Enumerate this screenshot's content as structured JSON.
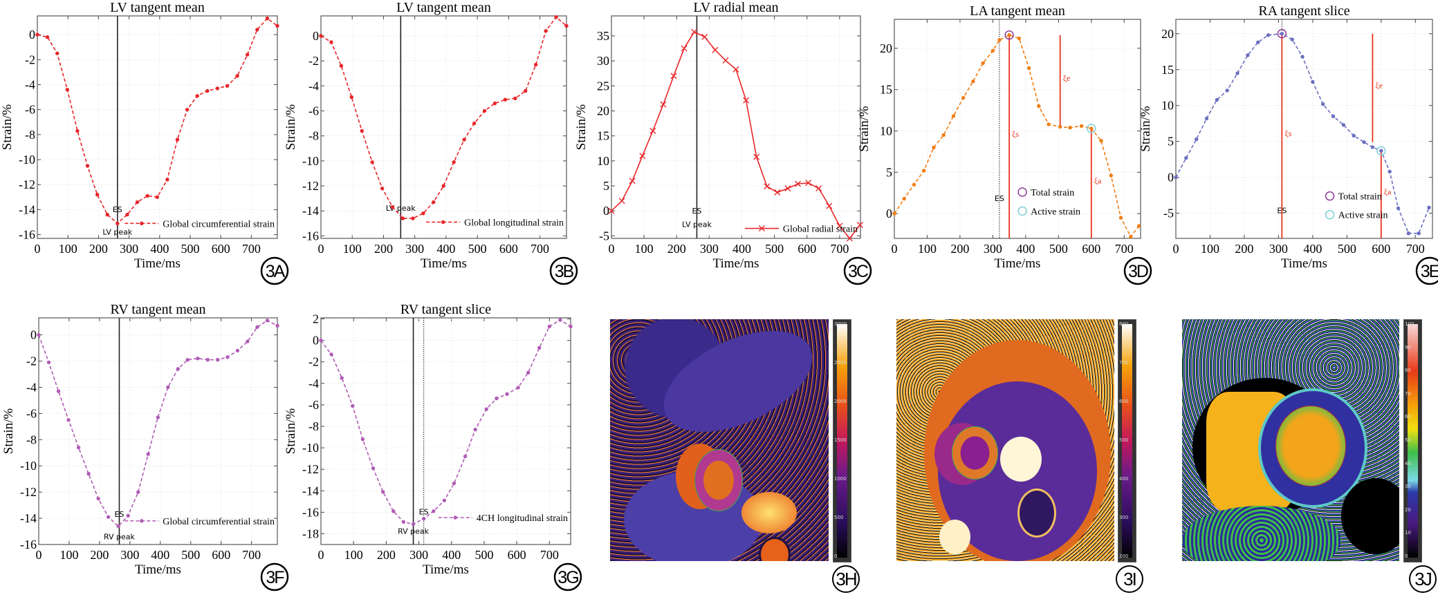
{
  "chart_data": [
    {
      "panel_label": "3A",
      "type": "line",
      "title": "LV tangent mean",
      "xlabel": "Time/ms",
      "ylabel": "Strain/%",
      "xlim": [
        0,
        785
      ],
      "ylim": [
        -16.3,
        1.5
      ],
      "xticks": [
        0,
        100,
        200,
        300,
        400,
        500,
        600,
        700
      ],
      "yticks": [
        -16,
        -14,
        -12,
        -10,
        -8,
        -6,
        -4,
        -2,
        0
      ],
      "grid": true,
      "color": "#e8262a",
      "marker": "dot",
      "line": "dashed",
      "legend": "bottom-right",
      "series": [
        {
          "name": "Global circumferential strain",
          "x": [
            0,
            33,
            65,
            98,
            131,
            164,
            196,
            229,
            262,
            294,
            327,
            360,
            392,
            425,
            458,
            490,
            523,
            556,
            589,
            621,
            654,
            687,
            719,
            752,
            785
          ],
          "y": [
            0,
            -0.2,
            -1.5,
            -4.4,
            -7.7,
            -10.5,
            -12.8,
            -14.4,
            -15.1,
            -14.4,
            -13.4,
            -12.9,
            -13.0,
            -11.6,
            -8.4,
            -6.0,
            -4.9,
            -4.5,
            -4.3,
            -4.1,
            -3.3,
            -1.6,
            0.4,
            1.3,
            0.7
          ]
        }
      ],
      "vlines": [
        {
          "x": 262,
          "style": "solid",
          "labels": [
            "ES",
            "LV peak"
          ]
        }
      ]
    },
    {
      "panel_label": "3B",
      "type": "line",
      "title": "LV tangent mean",
      "xlabel": "Time/ms",
      "ylabel": "Strain/%",
      "xlim": [
        0,
        785
      ],
      "ylim": [
        -16.2,
        1.6
      ],
      "xticks": [
        0,
        100,
        200,
        300,
        400,
        500,
        600,
        700
      ],
      "yticks": [
        -16,
        -14,
        -12,
        -10,
        -8,
        -6,
        -4,
        -2,
        0
      ],
      "grid": true,
      "color": "#e8262a",
      "marker": "dot",
      "line": "dashed",
      "legend": "bottom-right",
      "series": [
        {
          "name": "Global longitudinal strain",
          "x": [
            0,
            33,
            65,
            98,
            131,
            164,
            196,
            229,
            262,
            294,
            327,
            360,
            392,
            425,
            458,
            490,
            523,
            556,
            589,
            621,
            654,
            687,
            719,
            752,
            785
          ],
          "y": [
            0,
            -0.5,
            -2.4,
            -4.9,
            -7.6,
            -10.1,
            -12.2,
            -13.7,
            -14.6,
            -14.6,
            -14.2,
            -13.3,
            -12.0,
            -10.1,
            -8.3,
            -7.0,
            -6.0,
            -5.4,
            -5.1,
            -5.0,
            -4.4,
            -2.3,
            0.4,
            1.5,
            0.8
          ]
        }
      ],
      "vlines": [
        {
          "x": 255,
          "style": "solid",
          "labels": [
            "LV peak"
          ]
        }
      ]
    },
    {
      "panel_label": "3C",
      "type": "line",
      "title": "LV radial mean",
      "xlabel": "Time/ms",
      "ylabel": "Strain/%",
      "xlim": [
        0,
        764
      ],
      "ylim": [
        -5.5,
        39
      ],
      "xticks": [
        0,
        100,
        200,
        300,
        400,
        500,
        600,
        700
      ],
      "yticks": [
        -5,
        0,
        5,
        10,
        15,
        20,
        25,
        30,
        35
      ],
      "grid": true,
      "color": "#e8262a",
      "marker": "x",
      "line": "solid",
      "legend": "bottom-right",
      "series": [
        {
          "name": "Global radial strain",
          "x": [
            0,
            32,
            64,
            95,
            127,
            159,
            191,
            223,
            254,
            286,
            318,
            350,
            382,
            413,
            445,
            477,
            509,
            541,
            572,
            604,
            636,
            668,
            700,
            731,
            763
          ],
          "y": [
            0,
            2,
            6,
            11,
            16,
            21.3,
            27,
            32.5,
            35.8,
            34.8,
            32.2,
            30.1,
            28.3,
            22.1,
            10.8,
            4.9,
            3.7,
            4.5,
            5.4,
            5.6,
            4.5,
            1.0,
            -3.0,
            -5.5,
            -2.8
          ]
        }
      ],
      "vlines": [
        {
          "x": 262,
          "style": "solid",
          "labels": [
            "ES",
            "LV peak"
          ]
        }
      ]
    },
    {
      "panel_label": "3D",
      "type": "line",
      "title": "LA tangent mean",
      "xlabel": "Time/ms",
      "ylabel": "Strain/%",
      "xlim": [
        0,
        750
      ],
      "ylim": [
        -3,
        23.5
      ],
      "xticks": [
        0,
        100,
        200,
        300,
        400,
        500,
        600,
        700
      ],
      "yticks": [
        0,
        5,
        10,
        15,
        20
      ],
      "grid": true,
      "color": "#f07d14",
      "marker": "dot",
      "line": "dashed",
      "legend": "bottom-center",
      "series": [
        {
          "x": [
            0,
            30,
            60,
            90,
            120,
            150,
            180,
            210,
            240,
            270,
            300,
            320,
            350,
            380,
            410,
            440,
            470,
            505,
            535,
            570,
            600,
            630,
            660,
            690,
            720,
            745
          ],
          "y": [
            0,
            1.8,
            3.5,
            5.2,
            8.0,
            9.5,
            11.8,
            14.0,
            16.0,
            18.2,
            19.7,
            21.0,
            21.6,
            21.2,
            17.6,
            13.0,
            10.8,
            10.5,
            10.4,
            10.6,
            10.3,
            8.8,
            4.6,
            -0.5,
            -2.8,
            -1.5
          ]
        }
      ],
      "vlines": [
        {
          "x": 320,
          "style": "dotted",
          "labels": [
            "ES"
          ]
        }
      ],
      "strain_lines": [
        {
          "label": "ξs",
          "x": 350,
          "from": -3,
          "to": 21.6
        },
        {
          "label": "ξe",
          "x": 505,
          "from": 10.5,
          "to": 21.6
        },
        {
          "label": "ξa",
          "x": 600,
          "from": -3,
          "to": 10.3
        }
      ],
      "markers": [
        {
          "name": "Total strain",
          "x": 350,
          "y": 21.6,
          "color": "#8e3f9a"
        },
        {
          "name": "Active strain",
          "x": 600,
          "y": 10.3,
          "color": "#7fcfd6"
        }
      ]
    },
    {
      "panel_label": "3E",
      "type": "line",
      "title": "RA tangent slice",
      "xlabel": "Time/ms",
      "ylabel": "Strain/%",
      "xlim": [
        0,
        750
      ],
      "ylim": [
        -8.5,
        22
      ],
      "xticks": [
        0,
        100,
        200,
        300,
        400,
        500,
        600,
        700
      ],
      "yticks": [
        -5,
        0,
        5,
        10,
        15,
        20
      ],
      "grid": true,
      "color": "#6b6fc0",
      "marker": "dot",
      "line": "dashed",
      "legend": "bottom-center",
      "series": [
        {
          "x": [
            0,
            30,
            60,
            90,
            120,
            150,
            180,
            210,
            240,
            270,
            310,
            340,
            370,
            400,
            430,
            460,
            490,
            520,
            550,
            575,
            600,
            625,
            650,
            680,
            710,
            740
          ],
          "y": [
            0,
            2.7,
            5.3,
            8.2,
            10.8,
            12.1,
            14.5,
            17.0,
            18.8,
            19.8,
            20.0,
            19.2,
            16.8,
            13.3,
            10.2,
            8.5,
            7.3,
            5.8,
            4.9,
            4.2,
            3.7,
            0.8,
            -4.3,
            -7.8,
            -7.8,
            -4.2
          ]
        }
      ],
      "vlines": [
        {
          "x": 310,
          "style": "dotted",
          "labels": [
            "ES"
          ]
        }
      ],
      "strain_lines": [
        {
          "label": "ξs",
          "x": 310,
          "from": -8.5,
          "to": 20.0
        },
        {
          "label": "ξe",
          "x": 575,
          "from": 4.9,
          "to": 20.0
        },
        {
          "label": "ξa",
          "x": 600,
          "from": -8.5,
          "to": 3.7
        }
      ],
      "markers": [
        {
          "name": "Total strain",
          "x": 310,
          "y": 20.0,
          "color": "#8e3f9a"
        },
        {
          "name": "Active strain",
          "x": 600,
          "y": 3.7,
          "color": "#7fcfd6"
        }
      ]
    },
    {
      "panel_label": "3F",
      "type": "line",
      "title": "RV tangent mean",
      "xlabel": "Time/ms",
      "ylabel": "Strain/%",
      "xlim": [
        0,
        785
      ],
      "ylim": [
        -16,
        1.3
      ],
      "xticks": [
        0,
        100,
        200,
        300,
        400,
        500,
        600,
        700
      ],
      "yticks": [
        -16,
        -14,
        -12,
        -10,
        -8,
        -6,
        -4,
        -2,
        0
      ],
      "grid": true,
      "color": "#b05cb5",
      "marker": "dot",
      "line": "dashed",
      "legend": "bottom-right",
      "series": [
        {
          "name": "Global circumferential strain",
          "x": [
            0,
            33,
            65,
            98,
            131,
            164,
            196,
            229,
            262,
            294,
            327,
            360,
            392,
            425,
            458,
            490,
            523,
            556,
            589,
            621,
            654,
            687,
            719,
            752,
            785
          ],
          "y": [
            0,
            -2.1,
            -4.3,
            -6.5,
            -8.6,
            -10.6,
            -12.5,
            -13.9,
            -14.6,
            -13.8,
            -12.0,
            -9.1,
            -6.3,
            -4.0,
            -2.6,
            -1.9,
            -1.8,
            -1.9,
            -1.9,
            -1.7,
            -1.2,
            -0.5,
            0.6,
            1.1,
            0.7
          ]
        }
      ],
      "vlines": [
        {
          "x": 265,
          "style": "solid",
          "labels": [
            "ES",
            "RV peak"
          ]
        }
      ]
    },
    {
      "panel_label": "3G",
      "type": "line",
      "title": "RV tangent slice",
      "xlabel": "Time/ms",
      "ylabel": "Strain/%",
      "xlim": [
        0,
        765
      ],
      "ylim": [
        -19,
        2.1
      ],
      "xticks": [
        0,
        100,
        200,
        300,
        400,
        500,
        600,
        700
      ],
      "yticks": [
        -18,
        -16,
        -14,
        -12,
        -10,
        -8,
        -6,
        -4,
        -2,
        0,
        2
      ],
      "grid": true,
      "color": "#b05cb5",
      "marker": "dot",
      "line": "dashed",
      "legend": "bottom-right",
      "series": [
        {
          "name": "4CH longitudinal strain",
          "x": [
            0,
            32,
            64,
            97,
            128,
            160,
            190,
            222,
            253,
            283,
            315,
            345,
            378,
            408,
            442,
            473,
            507,
            538,
            570,
            604,
            635,
            669,
            700,
            733,
            765
          ],
          "y": [
            0,
            -1.3,
            -3.5,
            -6.1,
            -9.2,
            -11.9,
            -14.1,
            -15.9,
            -16.9,
            -17.1,
            -16.6,
            -15.9,
            -14.9,
            -13.3,
            -10.8,
            -8.3,
            -6.4,
            -5.4,
            -5.0,
            -4.4,
            -3.0,
            -0.7,
            1.3,
            1.9,
            1.3
          ]
        }
      ],
      "vlines": [
        {
          "x": 283,
          "style": "solid",
          "labels": [
            "RV peak"
          ]
        },
        {
          "x": 315,
          "style": "dotted",
          "labels": [
            "ES"
          ]
        }
      ]
    }
  ],
  "images": [
    {
      "panel_label": "3H",
      "colorbar_ticks": [
        0,
        500,
        1000,
        1500,
        2000,
        2500,
        3000
      ]
    },
    {
      "panel_label": "3I",
      "colorbar_ticks": [
        200,
        300,
        400,
        500,
        600,
        700,
        800
      ]
    },
    {
      "panel_label": "3J",
      "colorbar_ticks": [
        0,
        10,
        20,
        30,
        40,
        50,
        60,
        70,
        80,
        90,
        100
      ]
    }
  ]
}
